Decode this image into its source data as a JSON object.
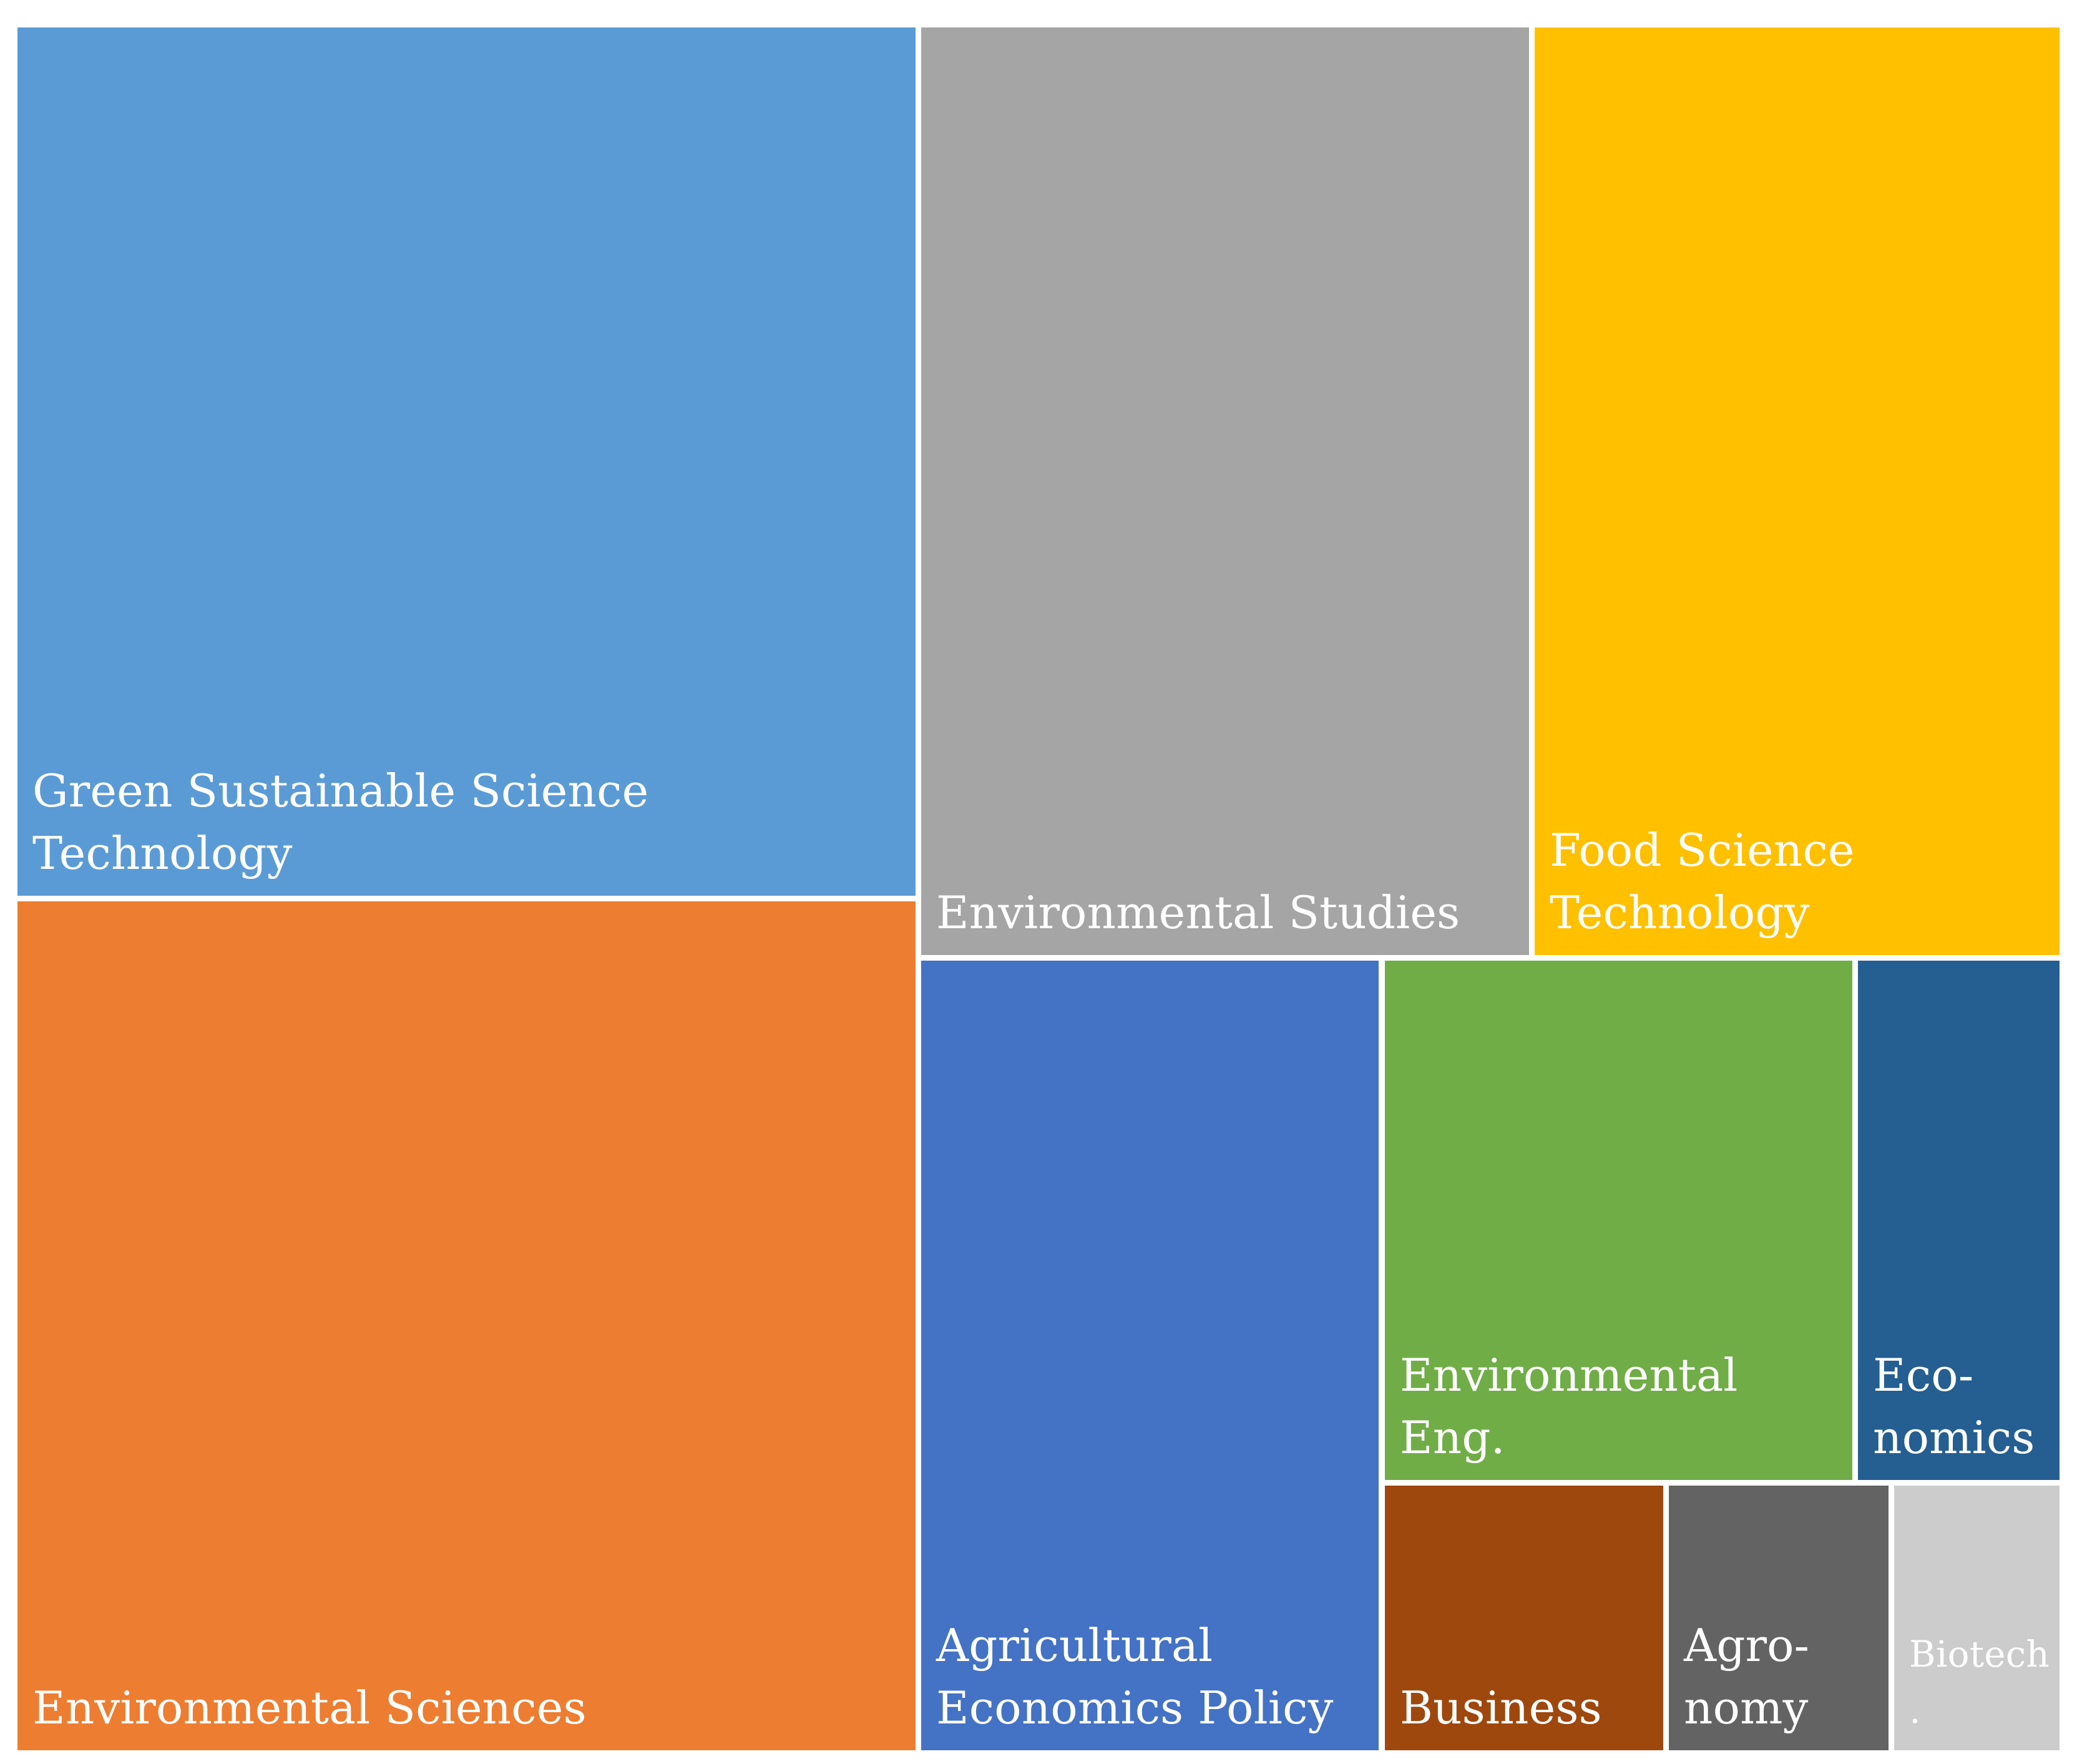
{
  "chart_data": {
    "type": "treemap",
    "title": "",
    "colors": {
      "Green Sustainable Science Technology": "#5B9BD5",
      "Environmental Sciences": "#ED7D31",
      "Environmental Studies": "#A5A5A5",
      "Food Science Technology": "#FFC000",
      "Agricultural Economics Policy": "#4472C4",
      "Environmental Eng.": "#70AD47",
      "Economics": "#255E91",
      "Business": "#9E480E",
      "Agronomy": "#636363",
      "Biotech.": "#997300"
    },
    "items": [
      {
        "id": "green",
        "label": "Green Sustainable Science Technology",
        "value": 29.2
      },
      {
        "id": "envsci",
        "label": "Environmental Sciences",
        "value": 28.5
      },
      {
        "id": "envstud",
        "label": "Environmental Studies",
        "value": 21.9
      },
      {
        "id": "food",
        "label": "Food Science\nTechnology",
        "value": 18.9
      },
      {
        "id": "agecon",
        "label": "Agricultural\nEconomics Policy",
        "value": 14.8
      },
      {
        "id": "enveng",
        "label": "Environmental\nEng.",
        "value": 9.7
      },
      {
        "id": "econ",
        "label": "Eco-\nnomics",
        "value": 4.1
      },
      {
        "id": "business",
        "label": "Business",
        "value": 3.1
      },
      {
        "id": "agronomy",
        "label": "Agro-\nnomy",
        "value": 2.4
      },
      {
        "id": "biotech",
        "label": "Biotech\n.",
        "value": 1.8
      }
    ]
  }
}
